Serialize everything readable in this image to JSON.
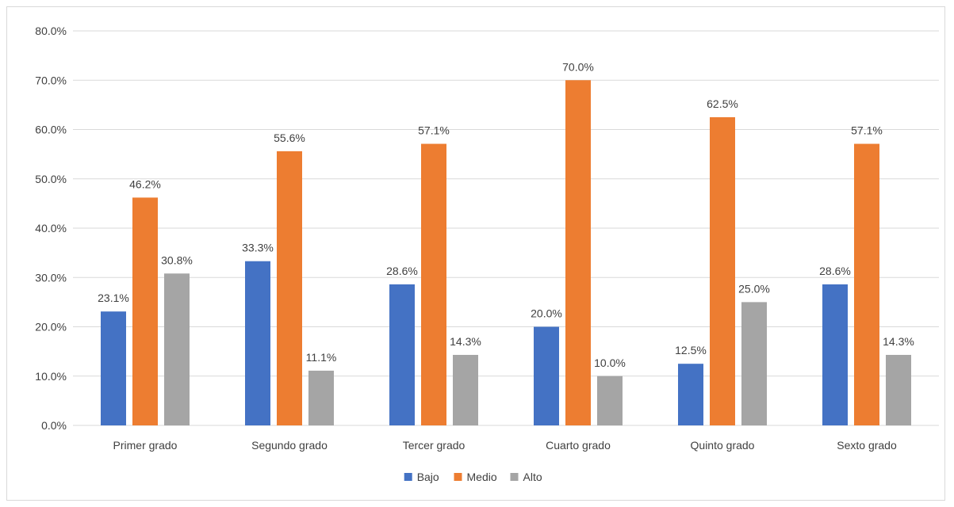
{
  "chart_data": {
    "type": "bar",
    "categories": [
      "Primer grado",
      "Segundo grado",
      "Tercer grado",
      "Cuarto grado",
      "Quinto grado",
      "Sexto grado"
    ],
    "series": [
      {
        "name": "Bajo",
        "color": "#4472c4",
        "values": [
          23.1,
          33.3,
          28.6,
          20.0,
          12.5,
          28.6
        ],
        "labels": [
          "23.1%",
          "33.3%",
          "28.6%",
          "20.0%",
          "12.5%",
          "28.6%"
        ]
      },
      {
        "name": "Medio",
        "color": "#ed7d31",
        "values": [
          46.2,
          55.6,
          57.1,
          70.0,
          62.5,
          57.1
        ],
        "labels": [
          "46.2%",
          "55.6%",
          "57.1%",
          "70.0%",
          "62.5%",
          "57.1%"
        ]
      },
      {
        "name": "Alto",
        "color": "#a5a5a5",
        "values": [
          30.8,
          11.1,
          14.3,
          10.0,
          25.0,
          14.3
        ],
        "labels": [
          "30.8%",
          "11.1%",
          "14.3%",
          "10.0%",
          "25.0%",
          "14.3%"
        ]
      }
    ],
    "yticks": [
      "0.0%",
      "10.0%",
      "20.0%",
      "30.0%",
      "40.0%",
      "50.0%",
      "60.0%",
      "70.0%",
      "80.0%"
    ],
    "ylim": [
      0,
      80
    ],
    "grid": true,
    "legend_position": "bottom",
    "gridline_color": "#d9d9d9"
  }
}
